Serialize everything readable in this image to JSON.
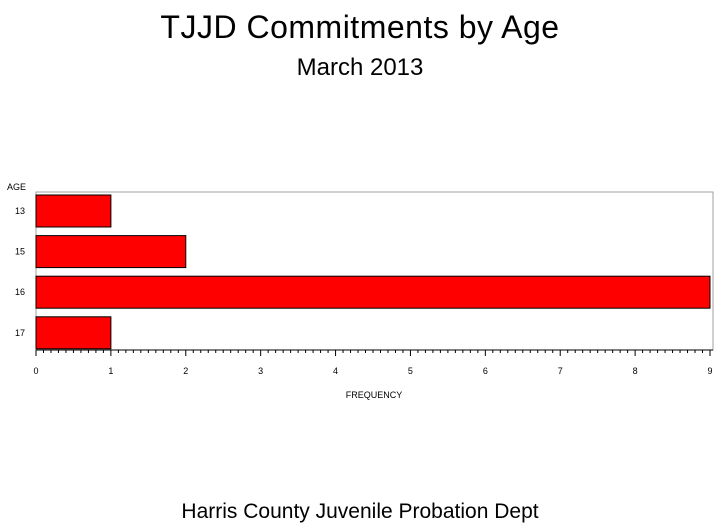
{
  "title": "TJJD Commitments by Age",
  "subtitle": "March 2013",
  "footer": "Harris County Juvenile Probation Dept",
  "colors": {
    "bar_fill": "#ff0000",
    "bar_stroke": "#000000",
    "frame": "#a0a0a0",
    "background": "#ffffff"
  },
  "chart_data": {
    "type": "bar",
    "orientation": "horizontal",
    "title": "TJJD Commitments by Age",
    "subtitle": "March 2013",
    "ylabel": "AGE",
    "xlabel": "FREQUENCY",
    "categories": [
      "13",
      "15",
      "16",
      "17"
    ],
    "values": [
      1,
      2,
      9,
      1
    ],
    "xlim": [
      0,
      9
    ],
    "xticks": [
      0,
      1,
      2,
      3,
      4,
      5,
      6,
      7,
      8,
      9
    ],
    "grid": false,
    "legend": "none"
  }
}
